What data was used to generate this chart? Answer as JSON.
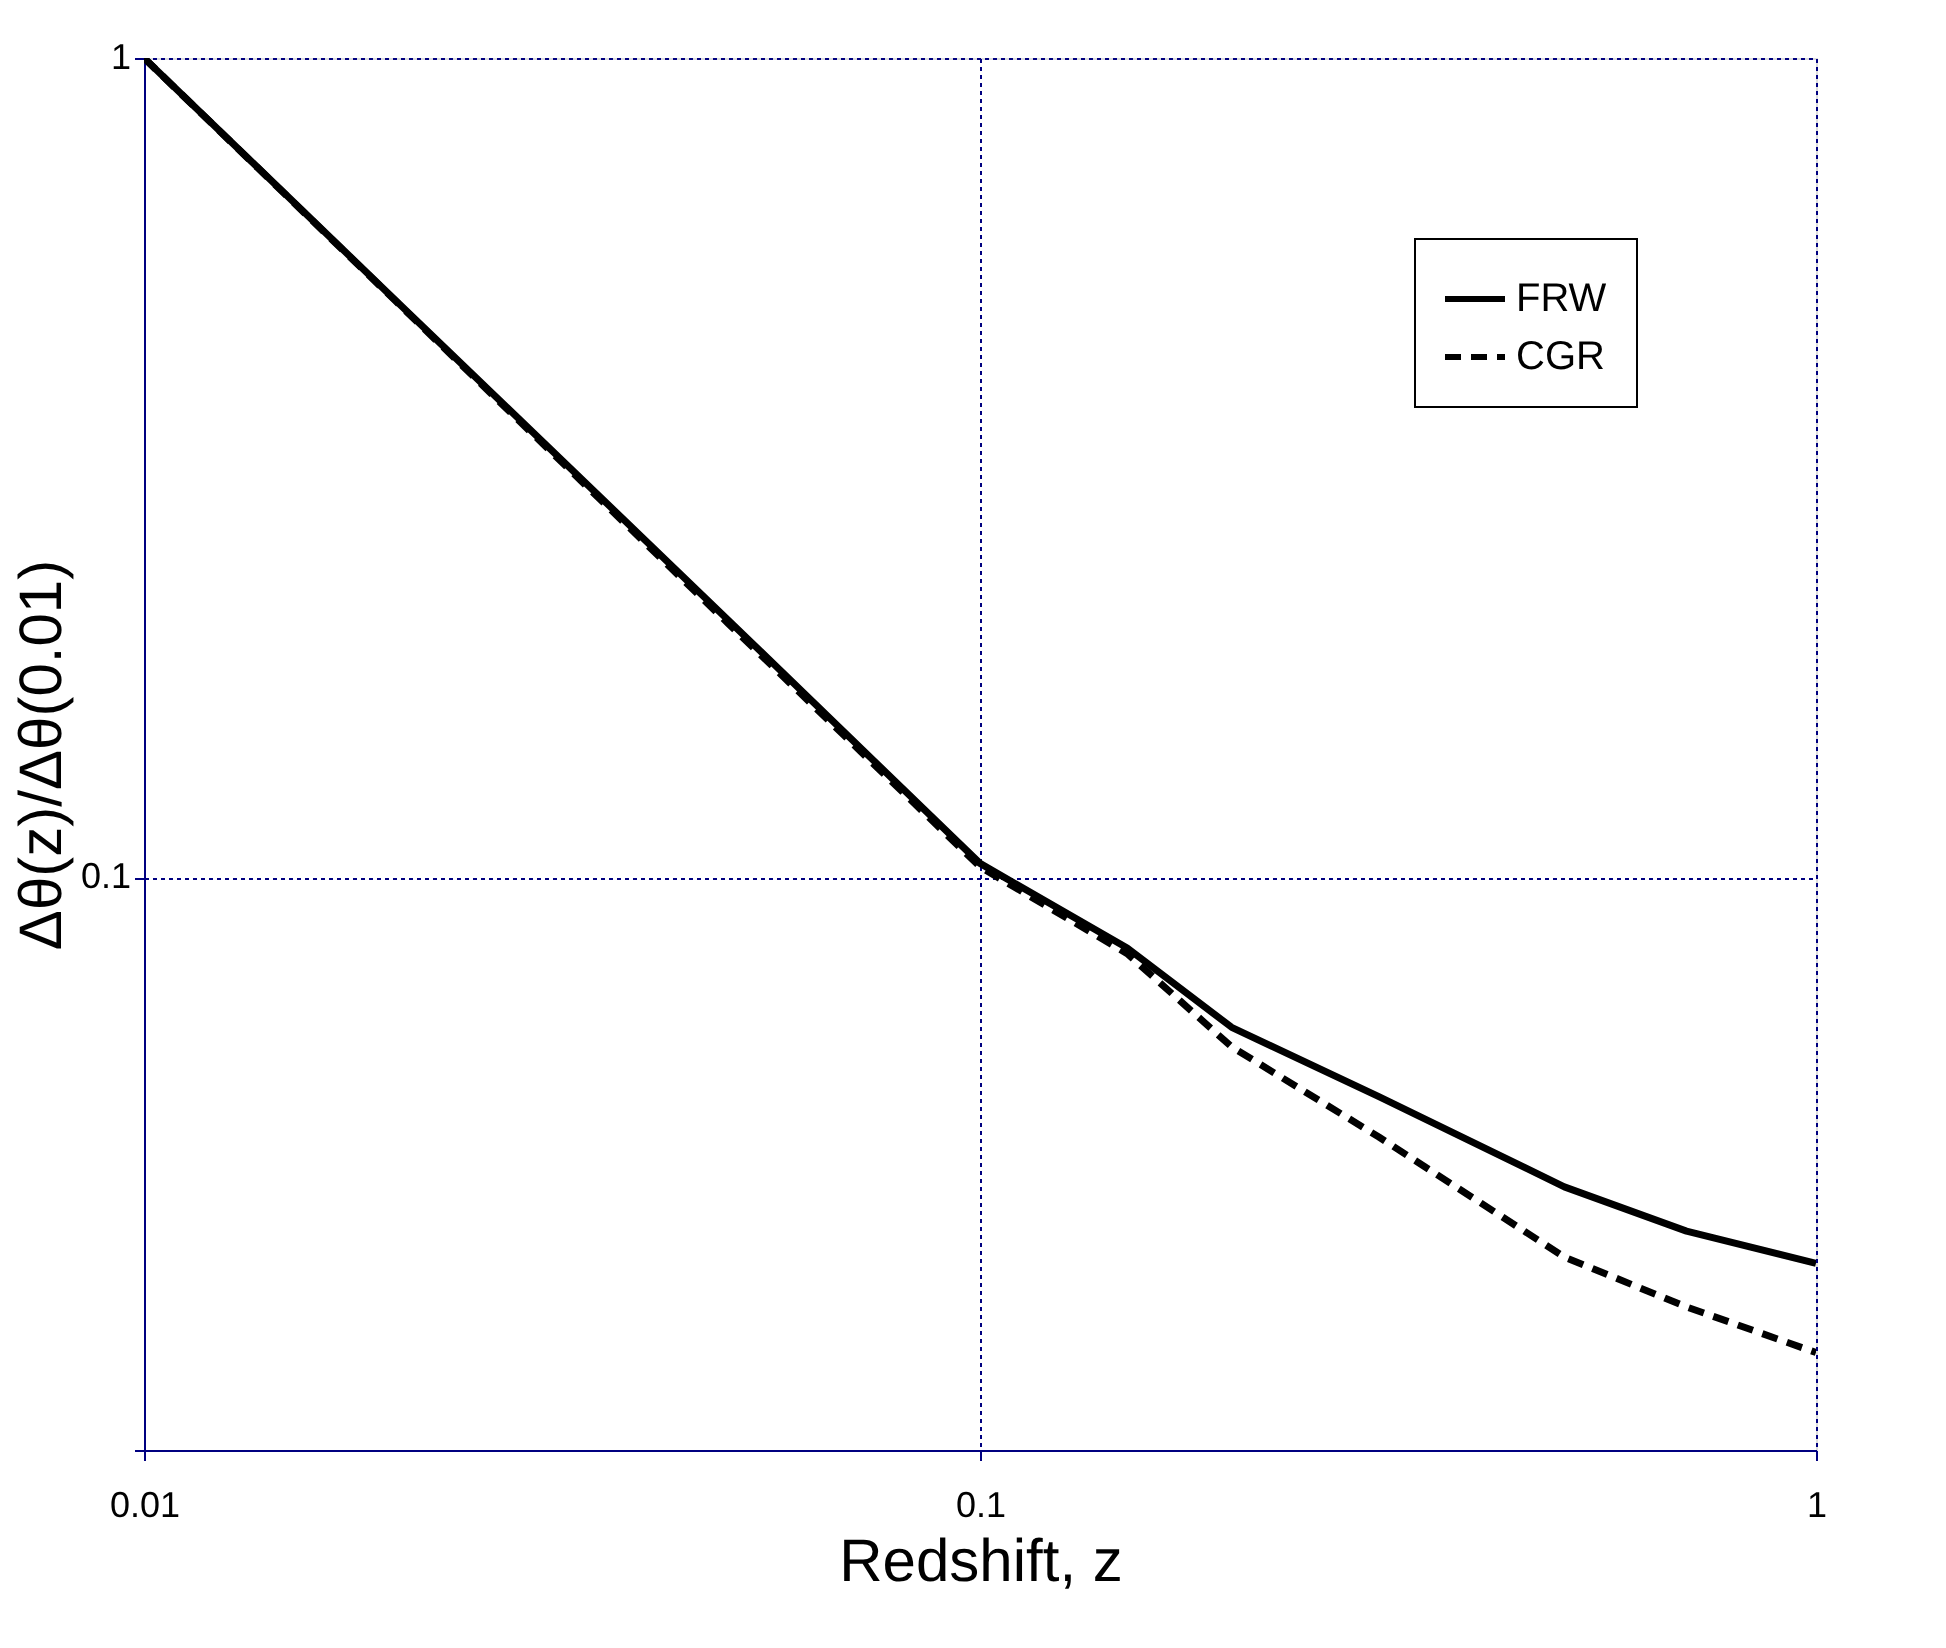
{
  "chart_data": {
    "type": "line",
    "xlabel": "Redshift, z",
    "ylabel": "Δθ(z)/Δθ(0.01)",
    "log": "xy",
    "grid": true,
    "legend": "top right",
    "xlim": [
      0.01,
      1
    ],
    "xticks": [
      0.01,
      0.1,
      1
    ],
    "ylim": [
      0.02,
      1
    ],
    "yticks": [
      {
        "value": 0.02,
        "label": null
      },
      0.1,
      1
    ],
    "series": [
      {
        "name": "FRW",
        "color": "#000000",
        "line_style": "solid",
        "x": [
          0.01,
          0.02,
          0.05,
          0.1,
          0.15,
          0.2,
          0.3,
          0.5,
          0.7,
          1
        ],
        "values": [
          1,
          0.506,
          0.206,
          0.104,
          0.082,
          0.0656,
          0.054,
          0.0419,
          0.037,
          0.0338
        ]
      },
      {
        "name": "CGR",
        "color": "#000000",
        "line_style": "dashed",
        "x": [
          0.01,
          0.02,
          0.05,
          0.1,
          0.15,
          0.2,
          0.3,
          0.5,
          0.7,
          1
        ],
        "values": [
          1,
          0.505,
          0.204,
          0.103,
          0.0807,
          0.0621,
          0.0482,
          0.0344,
          0.0299,
          0.0263
        ]
      }
    ]
  }
}
